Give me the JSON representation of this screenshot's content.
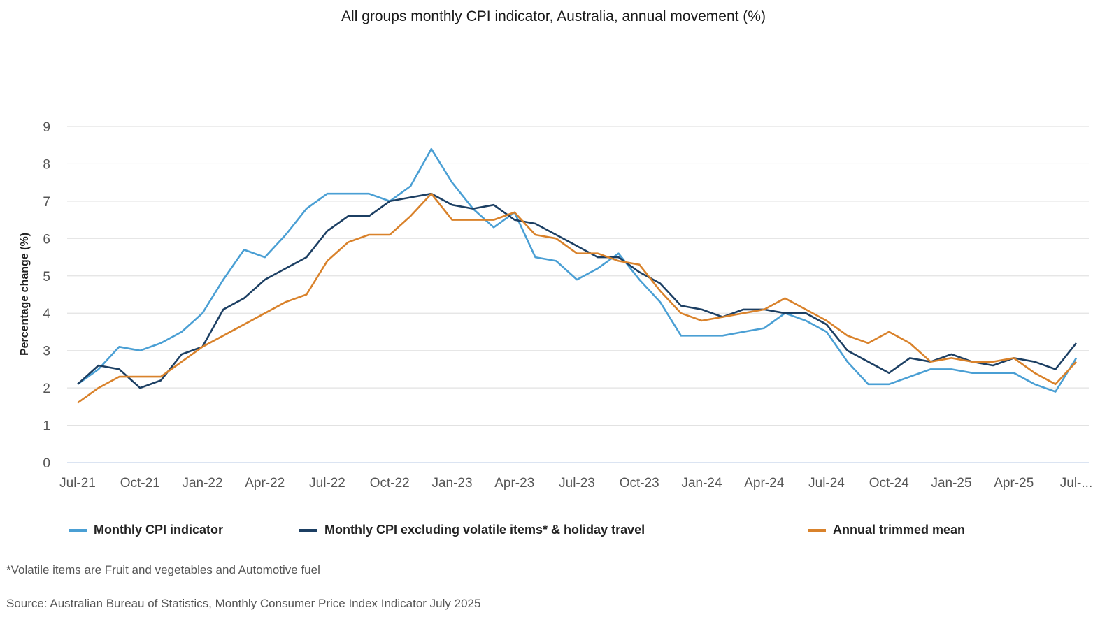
{
  "chart_data": {
    "type": "line",
    "title": "All groups monthly CPI indicator, Australia, annual movement (%)",
    "xlabel": "",
    "ylabel": "Percentage change (%)",
    "ylim": [
      0,
      9
    ],
    "yticks": [
      0,
      1,
      2,
      3,
      4,
      5,
      6,
      7,
      8,
      9
    ],
    "grid": true,
    "legend_position": "bottom",
    "x": [
      "Jul-21",
      "Aug-21",
      "Sep-21",
      "Oct-21",
      "Nov-21",
      "Dec-21",
      "Jan-22",
      "Feb-22",
      "Mar-22",
      "Apr-22",
      "May-22",
      "Jun-22",
      "Jul-22",
      "Aug-22",
      "Sep-22",
      "Oct-22",
      "Nov-22",
      "Dec-22",
      "Jan-23",
      "Feb-23",
      "Mar-23",
      "Apr-23",
      "May-23",
      "Jun-23",
      "Jul-23",
      "Aug-23",
      "Sep-23",
      "Oct-23",
      "Nov-23",
      "Dec-23",
      "Jan-24",
      "Feb-24",
      "Mar-24",
      "Apr-24",
      "May-24",
      "Jun-24",
      "Jul-24",
      "Aug-24",
      "Sep-24",
      "Oct-24",
      "Nov-24",
      "Dec-24",
      "Jan-25",
      "Feb-25",
      "Mar-25",
      "Apr-25",
      "May-25",
      "Jun-25",
      "Jul-25"
    ],
    "xtick_labels": [
      "Jul-21",
      "Oct-21",
      "Jan-22",
      "Apr-22",
      "Jul-22",
      "Oct-22",
      "Jan-23",
      "Apr-23",
      "Jul-23",
      "Oct-23",
      "Jan-24",
      "Apr-24",
      "Jul-24",
      "Oct-24",
      "Jan-25",
      "Apr-25",
      "Jul-..."
    ],
    "series": [
      {
        "name": "Monthly CPI indicator",
        "color": "#4a9fd4",
        "values": [
          2.1,
          2.5,
          3.1,
          3.0,
          3.2,
          3.5,
          4.0,
          4.9,
          5.7,
          5.5,
          6.1,
          6.8,
          7.2,
          7.2,
          7.2,
          7.0,
          7.4,
          8.4,
          7.5,
          6.8,
          6.3,
          6.7,
          5.5,
          5.4,
          4.9,
          5.2,
          5.6,
          4.9,
          4.3,
          3.4,
          3.4,
          3.4,
          3.5,
          3.6,
          4.0,
          3.8,
          3.5,
          2.7,
          2.1,
          2.1,
          2.3,
          2.5,
          2.5,
          2.4,
          2.4,
          2.4,
          2.1,
          1.9,
          2.8
        ]
      },
      {
        "name": "Monthly CPI excluding volatile items* & holiday travel",
        "color": "#1c3f63",
        "values": [
          2.1,
          2.6,
          2.5,
          2.0,
          2.2,
          2.9,
          3.1,
          4.1,
          4.4,
          4.9,
          5.2,
          5.5,
          6.2,
          6.6,
          6.6,
          7.0,
          7.1,
          7.2,
          6.9,
          6.8,
          6.9,
          6.5,
          6.4,
          6.1,
          5.8,
          5.5,
          5.5,
          5.1,
          4.8,
          4.2,
          4.1,
          3.9,
          4.1,
          4.1,
          4.0,
          4.0,
          3.7,
          3.0,
          2.7,
          2.4,
          2.8,
          2.7,
          2.9,
          2.7,
          2.6,
          2.8,
          2.7,
          2.5,
          3.2
        ]
      },
      {
        "name": "Annual trimmed mean",
        "color": "#d9822b",
        "values": [
          1.6,
          2.0,
          2.3,
          2.3,
          2.3,
          2.7,
          3.1,
          3.4,
          3.7,
          4.0,
          4.3,
          4.5,
          5.4,
          5.9,
          6.1,
          6.1,
          6.6,
          7.2,
          6.5,
          6.5,
          6.5,
          6.7,
          6.1,
          6.0,
          5.6,
          5.6,
          5.4,
          5.3,
          4.6,
          4.0,
          3.8,
          3.9,
          4.0,
          4.1,
          4.4,
          4.1,
          3.8,
          3.4,
          3.2,
          3.5,
          3.2,
          2.7,
          2.8,
          2.7,
          2.7,
          2.8,
          2.4,
          2.1,
          2.7
        ]
      }
    ]
  },
  "footnote": "*Volatile items are Fruit and vegetables and Automotive fuel",
  "source": "Source: Australian Bureau of Statistics, Monthly Consumer Price Index Indicator July 2025"
}
